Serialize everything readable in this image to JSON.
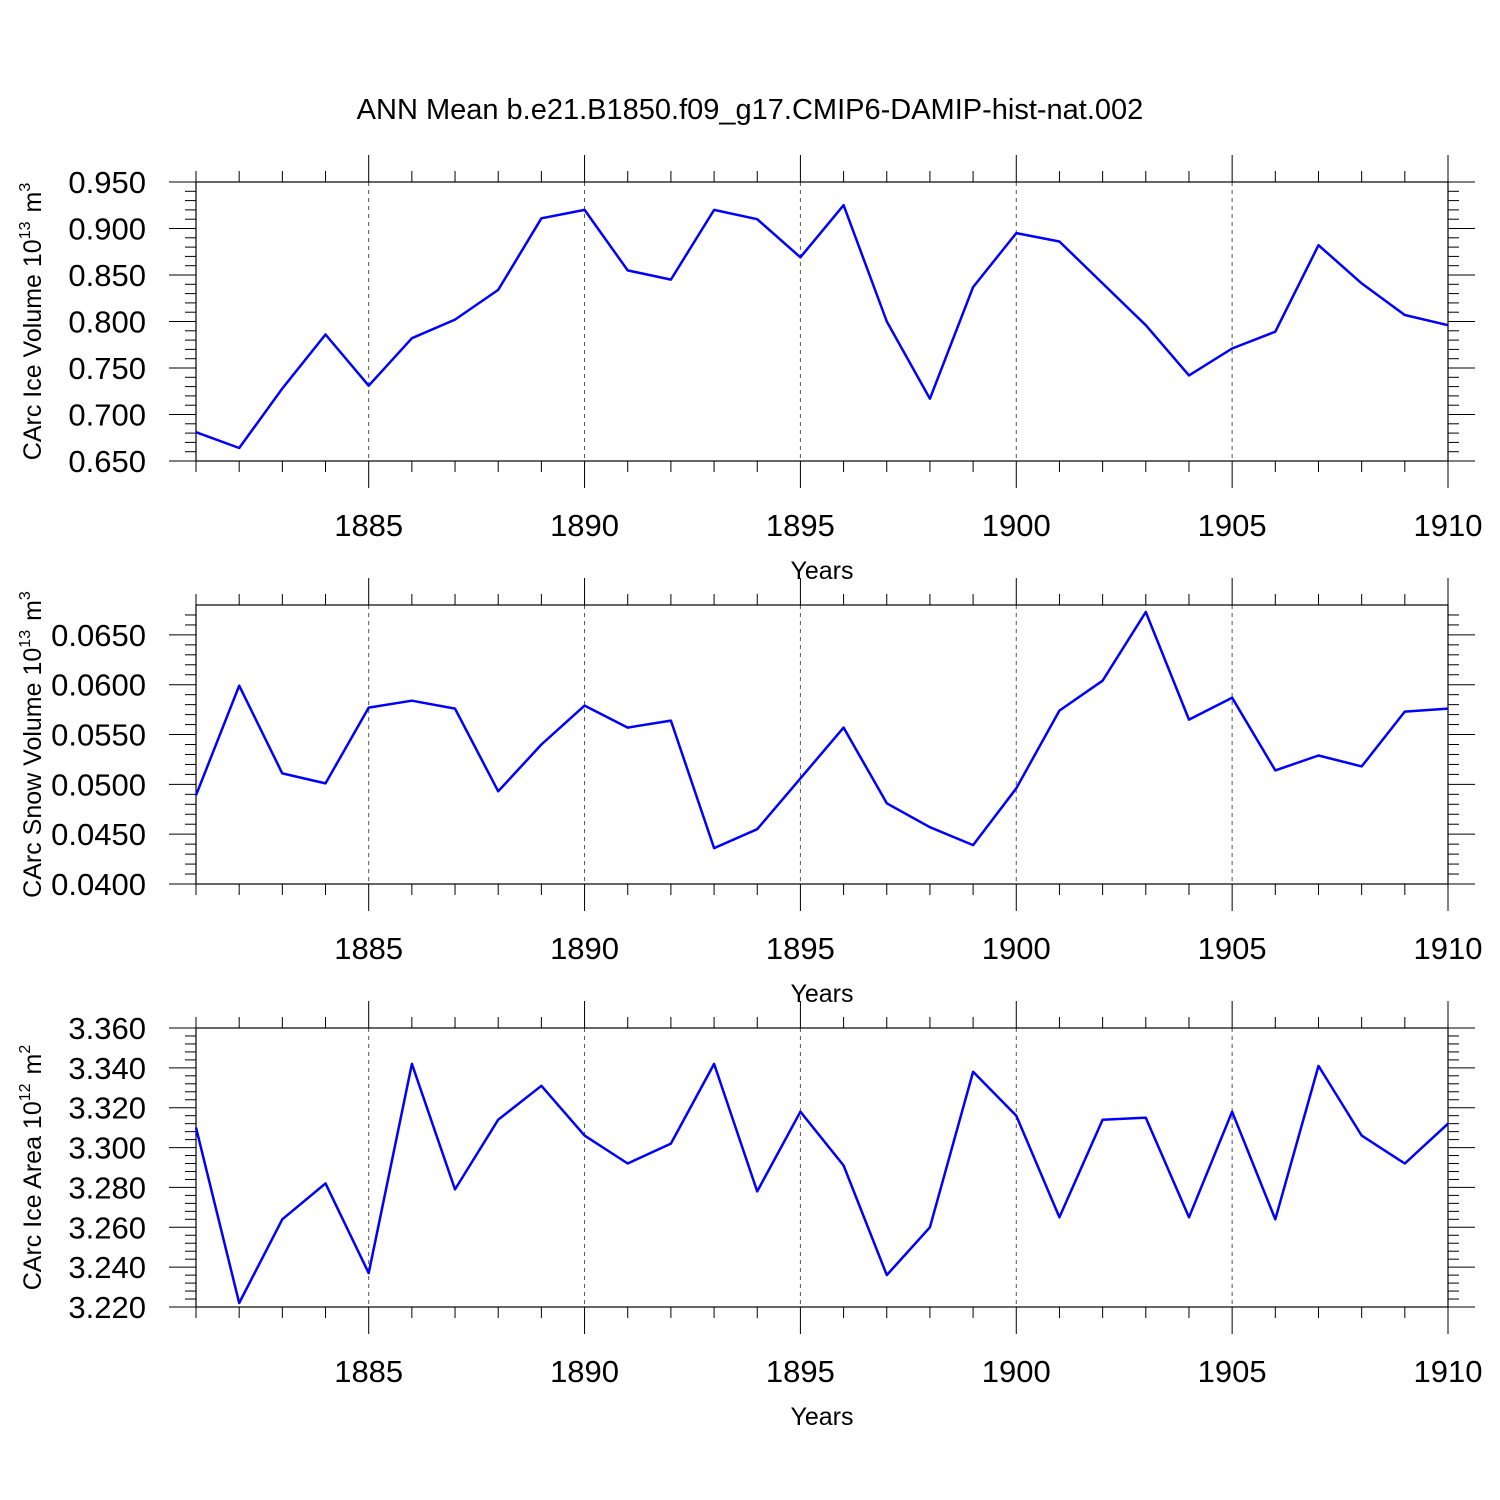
{
  "title": "ANN Mean b.e21.B1850.f09_g17.CMIP6-DAMIP-hist-nat.002",
  "line_color": "#0000ff",
  "chart_data": [
    {
      "type": "line",
      "title": "ANN Mean b.e21.B1850.f09_g17.CMIP6-DAMIP-hist-nat.002",
      "ylabel": {
        "main": "CArc Ice Volume 10",
        "sup": "13",
        "unit": "m",
        "unit_sup": "3"
      },
      "xlabel": "Years",
      "xlim": [
        1881,
        1910
      ],
      "ylim": [
        0.65,
        0.95
      ],
      "xticks": [
        1885,
        1890,
        1895,
        1900,
        1905,
        1910
      ],
      "xtick_labels": [
        "1885",
        "1890",
        "1895",
        "1900",
        "1905",
        "1910"
      ],
      "yticks": [
        0.65,
        0.7,
        0.75,
        0.8,
        0.85,
        0.9,
        0.95
      ],
      "ytick_labels": [
        "0.650",
        "0.700",
        "0.750",
        "0.800",
        "0.850",
        "0.900",
        "0.950"
      ],
      "x": [
        1881,
        1882,
        1883,
        1884,
        1885,
        1886,
        1887,
        1888,
        1889,
        1890,
        1891,
        1892,
        1893,
        1894,
        1895,
        1896,
        1897,
        1898,
        1899,
        1900,
        1901,
        1902,
        1903,
        1904,
        1905,
        1906,
        1907,
        1908,
        1909,
        1910
      ],
      "values": [
        0.681,
        0.664,
        0.728,
        0.786,
        0.731,
        0.782,
        0.802,
        0.834,
        0.911,
        0.92,
        0.855,
        0.845,
        0.92,
        0.91,
        0.869,
        0.925,
        0.8,
        0.717,
        0.837,
        0.895,
        0.886,
        0.841,
        0.796,
        0.742,
        0.771,
        0.789,
        0.882,
        0.841,
        0.807,
        0.796
      ]
    },
    {
      "type": "line",
      "ylabel": {
        "main": "CArc Snow Volume 10",
        "sup": "13",
        "unit": "m",
        "unit_sup": "3"
      },
      "xlabel": "Years",
      "xlim": [
        1881,
        1910
      ],
      "ylim": [
        0.04,
        0.068
      ],
      "xticks": [
        1885,
        1890,
        1895,
        1900,
        1905,
        1910
      ],
      "xtick_labels": [
        "1885",
        "1890",
        "1895",
        "1900",
        "1905",
        "1910"
      ],
      "yticks": [
        0.04,
        0.045,
        0.05,
        0.055,
        0.06,
        0.065
      ],
      "ytick_labels": [
        "0.0400",
        "0.0450",
        "0.0500",
        "0.0550",
        "0.0600",
        "0.0650"
      ],
      "x": [
        1881,
        1882,
        1883,
        1884,
        1885,
        1886,
        1887,
        1888,
        1889,
        1890,
        1891,
        1892,
        1893,
        1894,
        1895,
        1896,
        1897,
        1898,
        1899,
        1900,
        1901,
        1902,
        1903,
        1904,
        1905,
        1906,
        1907,
        1908,
        1909,
        1910
      ],
      "values": [
        0.0489,
        0.0599,
        0.0511,
        0.0501,
        0.0577,
        0.0584,
        0.0576,
        0.0493,
        0.054,
        0.0579,
        0.0557,
        0.0564,
        0.0436,
        0.0455,
        0.0506,
        0.0557,
        0.0481,
        0.0457,
        0.0439,
        0.0496,
        0.0574,
        0.0604,
        0.0673,
        0.0565,
        0.0587,
        0.0514,
        0.0529,
        0.0518,
        0.0573,
        0.0576
      ]
    },
    {
      "type": "line",
      "ylabel": {
        "main": "CArc Ice Area 10",
        "sup": "12",
        "unit": "m",
        "unit_sup": "2"
      },
      "xlabel": "Years",
      "xlim": [
        1881,
        1910
      ],
      "ylim": [
        3.22,
        3.36
      ],
      "xticks": [
        1885,
        1890,
        1895,
        1900,
        1905,
        1910
      ],
      "xtick_labels": [
        "1885",
        "1890",
        "1895",
        "1900",
        "1905",
        "1910"
      ],
      "yticks": [
        3.22,
        3.24,
        3.26,
        3.28,
        3.3,
        3.32,
        3.34,
        3.36
      ],
      "ytick_labels": [
        "3.220",
        "3.240",
        "3.260",
        "3.280",
        "3.300",
        "3.320",
        "3.340",
        "3.360"
      ],
      "x": [
        1881,
        1882,
        1883,
        1884,
        1885,
        1886,
        1887,
        1888,
        1889,
        1890,
        1891,
        1892,
        1893,
        1894,
        1895,
        1896,
        1897,
        1898,
        1899,
        1900,
        1901,
        1902,
        1903,
        1904,
        1905,
        1906,
        1907,
        1908,
        1909,
        1910
      ],
      "values": [
        3.31,
        3.222,
        3.264,
        3.282,
        3.237,
        3.342,
        3.279,
        3.314,
        3.331,
        3.306,
        3.292,
        3.302,
        3.342,
        3.278,
        3.318,
        3.291,
        3.236,
        3.26,
        3.338,
        3.316,
        3.265,
        3.314,
        3.315,
        3.265,
        3.318,
        3.264,
        3.341,
        3.306,
        3.292,
        3.312
      ]
    }
  ]
}
